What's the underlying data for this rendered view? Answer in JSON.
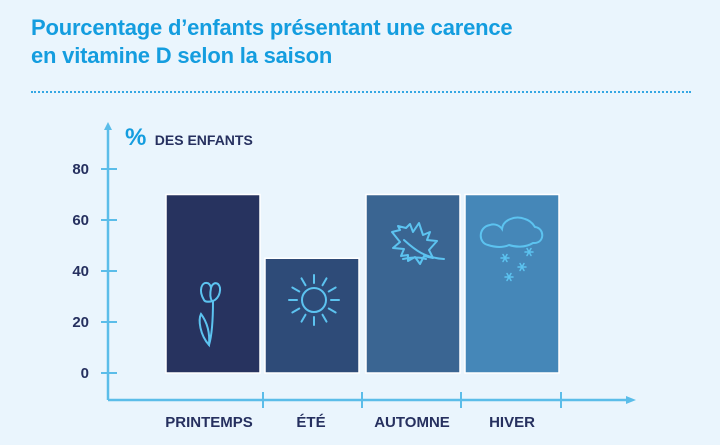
{
  "title_line1": "Pourcentage d’enfants présentant une carence",
  "title_line2": "en vitamine D selon la saison",
  "chart_data": {
    "type": "bar",
    "title": "Pourcentage d’enfants présentant une carence en vitamine D selon la saison",
    "ylabel_symbol": "%",
    "ylabel": "DES ENFANTS",
    "categories": [
      "PRINTEMPS",
      "ÉTÉ",
      "AUTOMNE",
      "HIVER"
    ],
    "values": [
      70,
      45,
      70,
      70
    ],
    "icons": [
      "tulip-icon",
      "sun-icon",
      "maple-leaf-icon",
      "snow-cloud-icon"
    ],
    "colors": [
      "#27335f",
      "#2e4b78",
      "#3a6592",
      "#4587b8"
    ],
    "ylim": [
      0,
      80
    ],
    "yticks": [
      "0",
      "20",
      "40",
      "60",
      "80"
    ],
    "grid": false,
    "accent": "#149ddf",
    "axis_color": "#5bbde9"
  }
}
